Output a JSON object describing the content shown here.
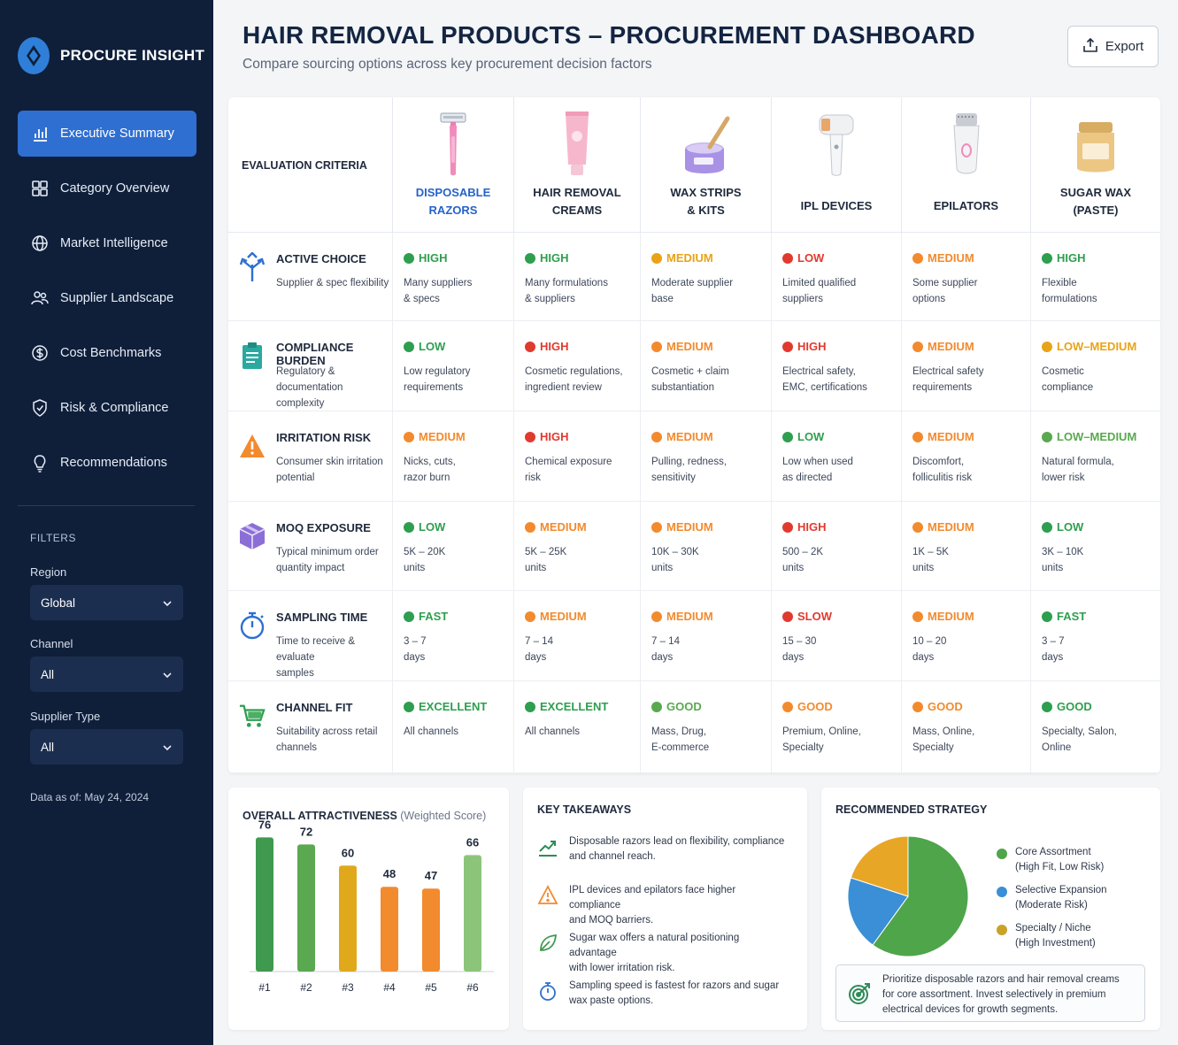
{
  "app": {
    "brand": "PROCURE INSIGHT"
  },
  "nav": [
    {
      "label": "Executive Summary",
      "icon": "bar-chart-icon",
      "active": true
    },
    {
      "label": "Category Overview",
      "icon": "grid-icon"
    },
    {
      "label": "Market Intelligence",
      "icon": "globe-icon"
    },
    {
      "label": "Supplier Landscape",
      "icon": "users-icon"
    },
    {
      "label": "Cost Benchmarks",
      "icon": "dollar-icon"
    },
    {
      "label": "Risk & Compliance",
      "icon": "shield-icon"
    },
    {
      "label": "Recommendations",
      "icon": "lightbulb-icon"
    }
  ],
  "filters": {
    "title": "FILTERS",
    "region": {
      "label": "Region",
      "value": "Global"
    },
    "channel": {
      "label": "Channel",
      "value": "All"
    },
    "supplier_type": {
      "label": "Supplier Type",
      "value": "All"
    }
  },
  "data_as_of": "Data as of: May 24, 2024",
  "header": {
    "title": "HAIR REMOVAL PRODUCTS – PROCUREMENT DASHBOARD",
    "subtitle": "Compare sourcing options across key procurement decision factors",
    "export_label": "Export"
  },
  "matrix": {
    "criteria_header": "EVALUATION CRITERIA",
    "products": [
      {
        "name_l1": "DISPOSABLE",
        "name_l2": "RAZORS",
        "icon": "razor-icon"
      },
      {
        "name_l1": "HAIR REMOVAL",
        "name_l2": "CREAMS",
        "icon": "cream-tube-icon"
      },
      {
        "name_l1": "WAX STRIPS",
        "name_l2": "& KITS",
        "icon": "wax-pot-icon"
      },
      {
        "name_l1": "IPL DEVICES",
        "name_l2": "",
        "icon": "ipl-device-icon"
      },
      {
        "name_l1": "EPILATORS",
        "name_l2": "",
        "icon": "epilator-icon"
      },
      {
        "name_l1": "SUGAR WAX",
        "name_l2": "(PASTE)",
        "icon": "sugar-wax-jar-icon"
      }
    ],
    "rows": [
      {
        "title": "ACTIVE CHOICE",
        "desc_l1": "Supplier & spec flexibility",
        "desc_l2": "",
        "icon": "branch-arrows-icon",
        "cells": [
          {
            "level": "HIGH",
            "color": "#2e9e4f",
            "l1": "Many suppliers",
            "l2": "& specs"
          },
          {
            "level": "HIGH",
            "color": "#2e9e4f",
            "l1": "Many formulations",
            "l2": "& suppliers"
          },
          {
            "level": "MEDIUM",
            "color": "#e8a317",
            "l1": "Moderate supplier",
            "l2": "base"
          },
          {
            "level": "LOW",
            "color": "#e03a2f",
            "l1": "Limited qualified",
            "l2": "suppliers"
          },
          {
            "level": "MEDIUM",
            "color": "#f28a2e",
            "l1": "Some supplier",
            "l2": "options"
          },
          {
            "level": "HIGH",
            "color": "#2e9e4f",
            "l1": "Flexible",
            "l2": "formulations"
          }
        ]
      },
      {
        "title": "COMPLIANCE BURDEN",
        "desc_l1": "Regulatory & documentation",
        "desc_l2": "complexity",
        "icon": "clipboard-icon",
        "cells": [
          {
            "level": "LOW",
            "color": "#2e9e4f",
            "l1": "Low regulatory",
            "l2": "requirements"
          },
          {
            "level": "HIGH",
            "color": "#e03a2f",
            "l1": "Cosmetic regulations,",
            "l2": "ingredient review"
          },
          {
            "level": "MEDIUM",
            "color": "#f28a2e",
            "l1": "Cosmetic + claim",
            "l2": "substantiation"
          },
          {
            "level": "HIGH",
            "color": "#e03a2f",
            "l1": "Electrical safety,",
            "l2": "EMC, certifications"
          },
          {
            "level": "MEDIUM",
            "color": "#f28a2e",
            "l1": "Electrical safety",
            "l2": "requirements"
          },
          {
            "level": "LOW–MEDIUM",
            "color": "#e8a317",
            "l1": "Cosmetic",
            "l2": "compliance"
          }
        ]
      },
      {
        "title": "IRRITATION RISK",
        "desc_l1": "Consumer skin irritation",
        "desc_l2": "potential",
        "icon": "warning-icon",
        "cells": [
          {
            "level": "MEDIUM",
            "color": "#f28a2e",
            "l1": "Nicks, cuts,",
            "l2": "razor burn"
          },
          {
            "level": "HIGH",
            "color": "#e03a2f",
            "l1": "Chemical exposure",
            "l2": "risk"
          },
          {
            "level": "MEDIUM",
            "color": "#f28a2e",
            "l1": "Pulling, redness,",
            "l2": "sensitivity"
          },
          {
            "level": "LOW",
            "color": "#2e9e4f",
            "l1": "Low when used",
            "l2": "as directed"
          },
          {
            "level": "MEDIUM",
            "color": "#f28a2e",
            "l1": "Discomfort,",
            "l2": "folliculitis risk"
          },
          {
            "level": "LOW–MEDIUM",
            "color": "#5aa84f",
            "l1": "Natural formula,",
            "l2": "lower risk"
          }
        ]
      },
      {
        "title": "MOQ EXPOSURE",
        "desc_l1": "Typical minimum order",
        "desc_l2": "quantity impact",
        "icon": "cube-icon",
        "cells": [
          {
            "level": "LOW",
            "color": "#2e9e4f",
            "l1": "5K – 20K",
            "l2": "units"
          },
          {
            "level": "MEDIUM",
            "color": "#f28a2e",
            "l1": "5K – 25K",
            "l2": "units"
          },
          {
            "level": "MEDIUM",
            "color": "#f28a2e",
            "l1": "10K – 30K",
            "l2": "units"
          },
          {
            "level": "HIGH",
            "color": "#e03a2f",
            "l1": "500 – 2K",
            "l2": "units"
          },
          {
            "level": "MEDIUM",
            "color": "#f28a2e",
            "l1": "1K – 5K",
            "l2": "units"
          },
          {
            "level": "LOW",
            "color": "#2e9e4f",
            "l1": "3K – 10K",
            "l2": "units"
          }
        ]
      },
      {
        "title": "SAMPLING TIME",
        "desc_l1": "Time to receive & evaluate",
        "desc_l2": "samples",
        "icon": "stopwatch-icon",
        "cells": [
          {
            "level": "FAST",
            "color": "#2e9e4f",
            "l1": "3 – 7",
            "l2": "days"
          },
          {
            "level": "MEDIUM",
            "color": "#f28a2e",
            "l1": "7 – 14",
            "l2": "days"
          },
          {
            "level": "MEDIUM",
            "color": "#f28a2e",
            "l1": "7 – 14",
            "l2": "days"
          },
          {
            "level": "SLOW",
            "color": "#e03a2f",
            "l1": "15 – 30",
            "l2": "days"
          },
          {
            "level": "MEDIUM",
            "color": "#f28a2e",
            "l1": "10 – 20",
            "l2": "days"
          },
          {
            "level": "FAST",
            "color": "#2e9e4f",
            "l1": "3 – 7",
            "l2": "days"
          }
        ]
      },
      {
        "title": "CHANNEL FIT",
        "desc_l1": "Suitability across retail",
        "desc_l2": "channels",
        "icon": "cart-icon",
        "cells": [
          {
            "level": "EXCELLENT",
            "color": "#2e9e4f",
            "l1": "All channels",
            "l2": ""
          },
          {
            "level": "EXCELLENT",
            "color": "#2e9e4f",
            "l1": "All channels",
            "l2": ""
          },
          {
            "level": "GOOD",
            "color": "#5aa84f",
            "l1": "Mass, Drug,",
            "l2": "E-commerce"
          },
          {
            "level": "GOOD",
            "color": "#f28a2e",
            "l1": "Premium, Online,",
            "l2": "Specialty"
          },
          {
            "level": "GOOD",
            "color": "#f28a2e",
            "l1": "Mass, Online,",
            "l2": "Specialty"
          },
          {
            "level": "GOOD",
            "color": "#2e9e4f",
            "l1": "Specialty, Salon,",
            "l2": "Online"
          }
        ]
      }
    ]
  },
  "attractiveness": {
    "title": "OVERALL ATTRACTIVENESS",
    "subtitle": "(Weighted Score)"
  },
  "chart_data": [
    {
      "type": "bar",
      "title": "OVERALL ATTRACTIVENESS (Weighted Score)",
      "categories": [
        "#1",
        "#2",
        "#3",
        "#4",
        "#5",
        "#6"
      ],
      "values": [
        76,
        72,
        60,
        48,
        47,
        66
      ],
      "colors": [
        "#3f9a4f",
        "#5aa84f",
        "#e0a91c",
        "#f28a2e",
        "#f28a2e",
        "#8cc57a"
      ],
      "ylim": [
        0,
        100
      ],
      "grid": false
    },
    {
      "type": "pie",
      "title": "RECOMMENDED STRATEGY",
      "labels": [
        "Core Assortment (High Fit, Low Risk)",
        "Selective Expansion (Moderate Risk)",
        "Specialty / Niche (High Investment)"
      ],
      "values": [
        60,
        20,
        20
      ],
      "colors": [
        "#4ea54a",
        "#3a8fd6",
        "#e8a626"
      ]
    }
  ],
  "takeaways": {
    "title": "KEY TAKEAWAYS",
    "items": [
      {
        "icon": "trend-up-icon",
        "l1": "Disposable razors lead on flexibility, compliance",
        "l2": "and channel reach."
      },
      {
        "icon": "warning-icon",
        "l1": "IPL devices and epilators face higher compliance",
        "l2": "and MOQ barriers."
      },
      {
        "icon": "leaf-icon",
        "l1": "Sugar wax offers a natural positioning advantage",
        "l2": "with lower irritation risk."
      },
      {
        "icon": "stopwatch-icon",
        "l1": "Sampling speed is fastest for razors and sugar",
        "l2": "wax paste options."
      }
    ]
  },
  "strategy": {
    "title": "RECOMMENDED STRATEGY",
    "legend": [
      {
        "l1": "Core Assortment",
        "l2": "(High Fit, Low Risk)",
        "color": "#4ea54a"
      },
      {
        "l1": "Selective Expansion",
        "l2": "(Moderate Risk)",
        "color": "#3a8fd6"
      },
      {
        "l1": "Specialty / Niche",
        "l2": "(High Investment)",
        "color": "#c9a227"
      }
    ],
    "recommendation_l1": "Prioritize disposable razors and hair removal creams",
    "recommendation_l2": "for core assortment. Invest selectively in premium",
    "recommendation_l3": "electrical devices for growth segments."
  }
}
